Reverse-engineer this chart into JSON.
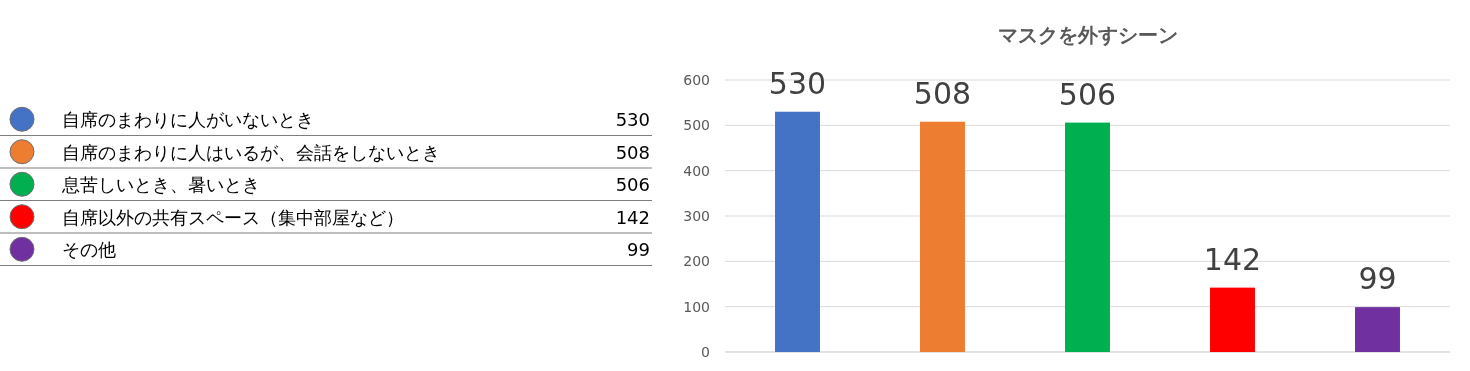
{
  "chart_data": [
    {
      "type": "other",
      "categories": [
        "自席のまわりに人がいないとき",
        "自席のまわりに人はいるが、会話をしないとき",
        "息苦しいとき、暑いとき",
        "自席以外の共有スペース（集中部屋など）",
        "その他"
      ],
      "values": [
        530,
        508,
        506,
        142,
        99
      ],
      "colors": [
        "#4472c4",
        "#ed7d31",
        "#00b050",
        "#ff0000",
        "#7030a0"
      ],
      "data_labels": true
    },
    {
      "type": "bar",
      "title": "マスクを外すシーン",
      "categories": [
        null,
        null,
        null,
        null,
        null
      ],
      "values": [
        530,
        508,
        506,
        142,
        99
      ],
      "colors": [
        "#4472c4",
        "#ed7d31",
        "#00b050",
        "#ff0000",
        "#7030a0"
      ],
      "ylim": [
        0,
        600
      ],
      "yticks": [
        0,
        100,
        200,
        300,
        400,
        500,
        600
      ],
      "grid": "y",
      "data_labels": true
    }
  ]
}
